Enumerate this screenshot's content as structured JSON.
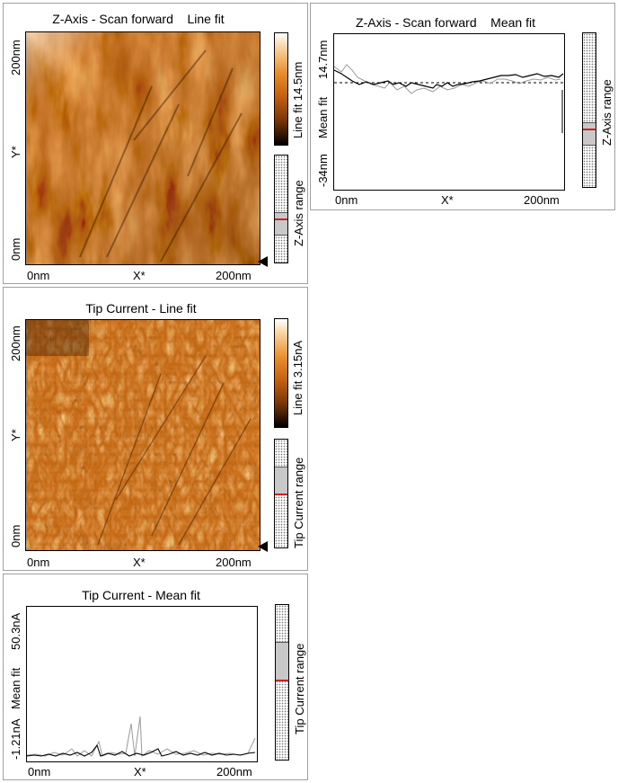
{
  "panels": {
    "z_line": {
      "title": "Z-Axis - Scan forward    Line fit",
      "y_top": "200nm",
      "y_bottom": "0nm",
      "y_axis": "Y*",
      "x_left": "0nm",
      "x_mid": "X*",
      "x_right": "200nm",
      "colorbar_label": "Line fit  14.5nm",
      "range_label": "Z-Axis range"
    },
    "z_mean": {
      "title": "Z-Axis - Scan forward    Mean fit",
      "y_top": "14.7nm",
      "y_bottom": "-34nm",
      "y_axis": "Mean fit",
      "x_left": "0nm",
      "x_mid": "X*",
      "x_right": "200nm",
      "range_label": "Z-Axis range"
    },
    "tip_line": {
      "title": "Tip Current - Line fit",
      "y_top": "200nm",
      "y_bottom": "0nm",
      "y_axis": "Y*",
      "x_left": "0nm",
      "x_mid": "X*",
      "x_right": "200nm",
      "colorbar_label": "Line fit  3.15nA",
      "range_label": "Tip Current range"
    },
    "tip_mean": {
      "title": "Tip Current - Mean fit",
      "y_top": "50.3nA",
      "y_bottom": "-1.21nA",
      "y_axis": "Mean fit",
      "x_left": "0nm",
      "x_mid": "X*",
      "x_right": "200nm",
      "range_label": "Tip Current range"
    }
  },
  "colors": {
    "afm_dark": "#3a1a04",
    "afm_mid": "#c0641a",
    "afm_light": "#f5b36a",
    "range_marker": "#cc2222"
  }
}
